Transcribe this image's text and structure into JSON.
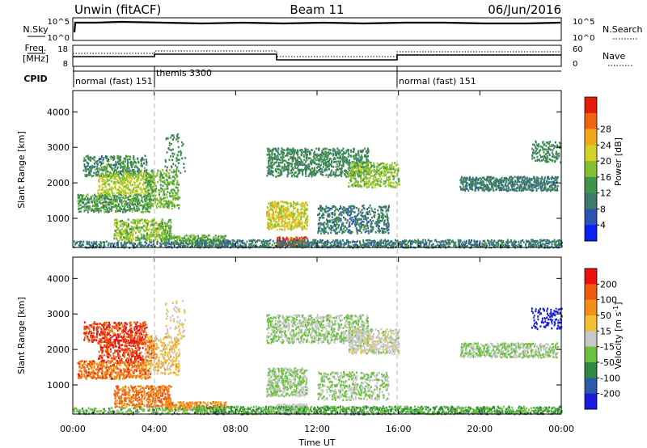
{
  "header": {
    "station": "Unwin (fitACF)",
    "beam": "Beam 11",
    "date": "06/Jun/2016"
  },
  "panels": {
    "nsky": {
      "label": "N.Sky",
      "right_label": "N.Search",
      "ticks": [
        "10^5",
        "10^0"
      ],
      "right_ticks": [
        "10^5",
        "10^0"
      ]
    },
    "freq": {
      "label_top": "Freq.",
      "label_bottom": "[MHz]",
      "ticks": [
        "18",
        "8"
      ],
      "right_ticks": [
        "60",
        "0"
      ],
      "right_label": "Nave"
    },
    "cpid": {
      "label": "CPID",
      "modes": [
        {
          "text": "normal (fast)  151",
          "start_h": 0
        },
        {
          "text": "themis  3300",
          "start_h": 4.05
        },
        {
          "text": "normal (fast)  151",
          "start_h": 16.0
        }
      ]
    }
  },
  "chart_data": [
    {
      "type": "heatmap",
      "name": "power",
      "ylabel": "Slant Range [km]",
      "yticks": [
        1000,
        2000,
        3000,
        4000
      ],
      "ylim": [
        180,
        4600
      ],
      "colorbar": {
        "label": "Power [dB]",
        "ticks": [
          "4",
          "8",
          "12",
          "16",
          "20",
          "24",
          "28"
        ],
        "colors": [
          "#0a22f0",
          "#2a55b4",
          "#3d7a6a",
          "#3f9448",
          "#82c030",
          "#d4d228",
          "#f2a818",
          "#ee6410",
          "#e41c0e"
        ]
      }
    },
    {
      "type": "heatmap",
      "name": "velocity",
      "ylabel": "Slant Range [km]",
      "yticks": [
        1000,
        2000,
        3000,
        4000
      ],
      "ylim": [
        180,
        4600
      ],
      "colorbar": {
        "label_main": "Velocity [m s",
        "label_sup": "-1",
        "label_end": "]",
        "ticks": [
          "200",
          "100",
          "50",
          "15",
          "-15",
          "-50",
          "-100",
          "-200"
        ],
        "colors": [
          "#1a1ae0",
          "#2a5aa8",
          "#2e8a3e",
          "#6cc040",
          "#c8c8c8",
          "#f0c030",
          "#f09018",
          "#f05a10",
          "#e81010"
        ]
      }
    }
  ],
  "time_axis": {
    "label": "Time UT",
    "ticks": [
      "00:00",
      "04:00",
      "08:00",
      "12:00",
      "16:00",
      "20:00",
      "00:00"
    ],
    "range_h": [
      0,
      24
    ]
  }
}
